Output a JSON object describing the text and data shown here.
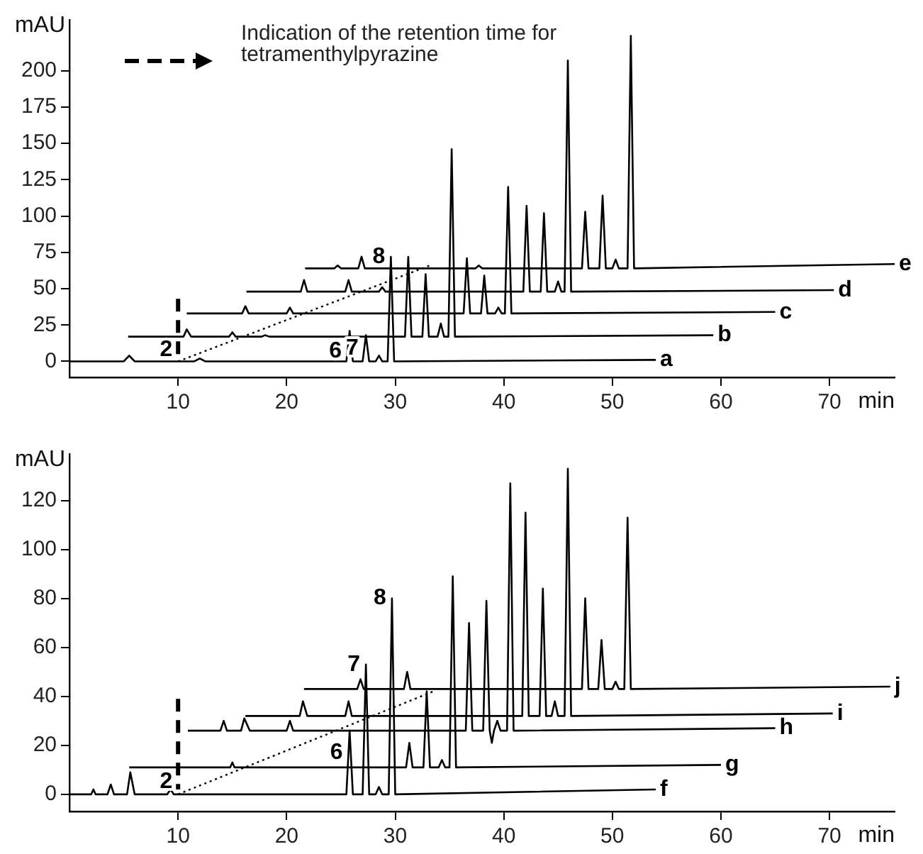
{
  "chart_data": [
    {
      "type": "line",
      "xlabel": "min",
      "ylabel": "mAU",
      "xlim": [
        0,
        76
      ],
      "xticks": [
        10,
        20,
        30,
        40,
        50,
        60,
        70
      ],
      "ylim": [
        -11,
        235
      ],
      "yticks": [
        0,
        25,
        50,
        75,
        100,
        125,
        150,
        175,
        200
      ],
      "annotations": [
        "Indication of the retention time for tetramenthylpyrazine",
        {
          "text": "2",
          "x": 10,
          "y": 8
        },
        {
          "text": "6",
          "x": 25.6,
          "y": 7
        },
        {
          "text": "7",
          "x": 27.15,
          "y": 9
        },
        {
          "text": "8",
          "x": 29.6,
          "y": 72
        }
      ],
      "series": [
        {
          "name": "a",
          "color": "#000000",
          "x": [
            0,
            5,
            5.5,
            6,
            11.5,
            12,
            12.5,
            25.5,
            25.8,
            26.1,
            27,
            27.3,
            27.6,
            28.2,
            28.5,
            28.8,
            29.3,
            29.6,
            29.9,
            54
          ],
          "values": [
            0,
            0,
            4,
            0,
            0,
            2,
            0,
            0,
            21,
            0,
            0,
            18,
            0,
            0,
            4,
            0,
            0,
            72,
            0,
            1
          ]
        },
        {
          "name": "b",
          "color": "#000000",
          "x": [
            5.4,
            10.5,
            10.8,
            11.2,
            14.7,
            15,
            15.3,
            17.7,
            18,
            18.4,
            30.9,
            31.2,
            31.5,
            32.5,
            32.8,
            33.1,
            33.9,
            34.2,
            34.5,
            34.9,
            35.2,
            35.5,
            59.3
          ],
          "values": [
            17,
            17,
            22,
            17,
            17,
            20,
            17,
            17,
            18,
            17,
            17,
            72,
            17,
            17,
            60,
            17,
            17,
            26,
            17,
            17,
            146,
            17,
            18
          ]
        },
        {
          "name": "c",
          "color": "#000000",
          "x": [
            10.8,
            15.9,
            16.2,
            16.5,
            20,
            20.3,
            20.6,
            36.3,
            36.6,
            36.9,
            37.9,
            38.2,
            38.5,
            39.2,
            39.5,
            39.8,
            40.1,
            40.4,
            40.7,
            65
          ],
          "values": [
            33,
            33,
            38,
            33,
            33,
            37,
            33,
            33,
            71,
            33,
            33,
            59,
            33,
            33,
            37,
            33,
            33,
            120,
            33,
            34
          ]
        },
        {
          "name": "d",
          "color": "#000000",
          "x": [
            16.3,
            21.3,
            21.6,
            21.9,
            25.4,
            25.7,
            26,
            28.5,
            28.8,
            29.1,
            41.8,
            42.1,
            42.4,
            43.4,
            43.7,
            44,
            44.7,
            45,
            45.3,
            45.6,
            45.9,
            46.2,
            70.4
          ],
          "values": [
            48,
            48,
            56,
            48,
            48,
            56,
            48,
            48,
            51,
            48,
            48,
            107,
            48,
            48,
            102,
            48,
            48,
            55,
            48,
            48,
            207,
            48,
            49
          ]
        },
        {
          "name": "e",
          "color": "#000000",
          "x": [
            21.7,
            24.4,
            24.7,
            25,
            26.6,
            26.9,
            27.2,
            37.4,
            37.7,
            38,
            47.2,
            47.5,
            47.8,
            48.8,
            49.1,
            49.4,
            50,
            50.3,
            50.6,
            51.4,
            51.7,
            52,
            76
          ],
          "values": [
            64,
            64,
            66,
            64,
            64,
            72,
            64,
            64,
            66,
            64,
            64,
            103,
            64,
            64,
            114,
            64,
            64,
            70,
            64,
            64,
            224,
            64,
            67
          ]
        },
        {
          "color": "#000000",
          "line_style": "dotted",
          "x": [
            10,
            33.2
          ],
          "values": [
            0,
            66
          ]
        },
        {
          "color": "#000000",
          "line_style": "dashed",
          "x": [
            10,
            10
          ],
          "values": [
            43,
            2
          ]
        }
      ]
    },
    {
      "type": "line",
      "xlabel": "min",
      "ylabel": "mAU",
      "xlim": [
        0,
        76
      ],
      "xticks": [
        10,
        20,
        30,
        40,
        50,
        60,
        70
      ],
      "ylim": [
        -7,
        139
      ],
      "yticks": [
        0,
        20,
        40,
        60,
        80,
        100,
        120
      ],
      "annotations": [
        {
          "text": "2",
          "x": 10,
          "y": 5
        },
        {
          "text": "6",
          "x": 25.7,
          "y": 17
        },
        {
          "text": "7",
          "x": 27.3,
          "y": 53
        },
        {
          "text": "8",
          "x": 29.7,
          "y": 80
        }
      ],
      "series": [
        {
          "name": "f",
          "color": "#000000",
          "x": [
            0,
            2,
            2.2,
            2.4,
            3.5,
            3.8,
            4.1,
            5.3,
            5.6,
            6,
            9,
            9.3,
            9.6,
            25.5,
            25.8,
            26.1,
            27,
            27.3,
            27.6,
            28.2,
            28.5,
            28.8,
            29.4,
            29.7,
            30,
            54
          ],
          "values": [
            0,
            0,
            2,
            0,
            0,
            4,
            0,
            0,
            9,
            0,
            0,
            2,
            0,
            0,
            26,
            0,
            0,
            53,
            0,
            0,
            3,
            0,
            0,
            80,
            0,
            2
          ]
        },
        {
          "name": "g",
          "color": "#000000",
          "x": [
            5.5,
            14.8,
            15,
            15.2,
            31,
            31.3,
            31.6,
            32.6,
            32.9,
            33.2,
            34,
            34.3,
            34.6,
            35,
            35.3,
            35.6,
            60
          ],
          "values": [
            11,
            11,
            13,
            11,
            11,
            21,
            11,
            11,
            42,
            11,
            11,
            14,
            11,
            11,
            89,
            11,
            12
          ]
        },
        {
          "name": "h",
          "color": "#000000",
          "x": [
            10.9,
            13.9,
            14.2,
            14.5,
            15.8,
            16.1,
            16.6,
            20,
            20.3,
            20.6,
            36.5,
            36.8,
            37.1,
            38.1,
            38.4,
            38.7,
            38.9,
            39.1,
            39.4,
            39.7,
            40.3,
            40.6,
            40.9,
            65
          ],
          "values": [
            26,
            26,
            30,
            26,
            26,
            31,
            26,
            26,
            30,
            26,
            26,
            70,
            26,
            26,
            79,
            26,
            21,
            26,
            30,
            26,
            26,
            127,
            26,
            27
          ]
        },
        {
          "name": "i",
          "color": "#000000",
          "x": [
            16.2,
            21.2,
            21.5,
            21.9,
            25.4,
            25.7,
            26,
            41.7,
            42,
            42.3,
            43.3,
            43.6,
            43.9,
            44.4,
            44.7,
            45,
            45.6,
            45.9,
            46.2,
            70.3
          ],
          "values": [
            32,
            32,
            38,
            32,
            32,
            38,
            32,
            32,
            115,
            32,
            32,
            84,
            32,
            32,
            38,
            32,
            32,
            133,
            32,
            33
          ]
        },
        {
          "name": "j",
          "color": "#000000",
          "x": [
            21.6,
            26.5,
            26.8,
            27.1,
            30.8,
            31.1,
            31.4,
            47.2,
            47.5,
            47.8,
            48.7,
            49,
            49.3,
            50,
            50.3,
            50.6,
            51.1,
            51.4,
            51.7,
            75.6
          ],
          "values": [
            43,
            43,
            47,
            43,
            43,
            50,
            43,
            43,
            80,
            43,
            43,
            63,
            43,
            43,
            46,
            43,
            43,
            113,
            43,
            44
          ]
        },
        {
          "color": "#000000",
          "line_style": "dotted",
          "x": [
            10,
            33.5
          ],
          "values": [
            0,
            42
          ]
        },
        {
          "color": "#000000",
          "line_style": "dashed",
          "x": [
            10,
            10
          ],
          "values": [
            39,
            2
          ]
        }
      ]
    }
  ]
}
